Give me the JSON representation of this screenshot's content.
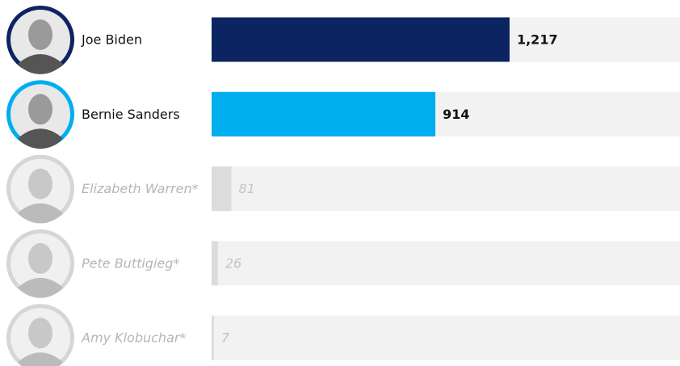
{
  "chart_data": {
    "type": "bar",
    "categories": [
      "Joe Biden",
      "Bernie Sanders",
      "Elizabeth Warren*",
      "Pete Buttigieg*",
      "Amy Klobuchar*"
    ],
    "values": [
      1217,
      914,
      81,
      26,
      7
    ],
    "value_labels": [
      "1,217",
      "914",
      "81",
      "26",
      "7"
    ],
    "colors": [
      "#0c2461",
      "#00aeef",
      "#dcdcdc",
      "#dcdcdc",
      "#dcdcdc"
    ],
    "label_colors": [
      "#121212",
      "#121212",
      "#b5b5b5",
      "#b5b5b5",
      "#b5b5b5"
    ],
    "label_styles": [
      "normal",
      "normal",
      "italic",
      "italic",
      "italic"
    ],
    "xlim": [
      0,
      1913
    ]
  }
}
